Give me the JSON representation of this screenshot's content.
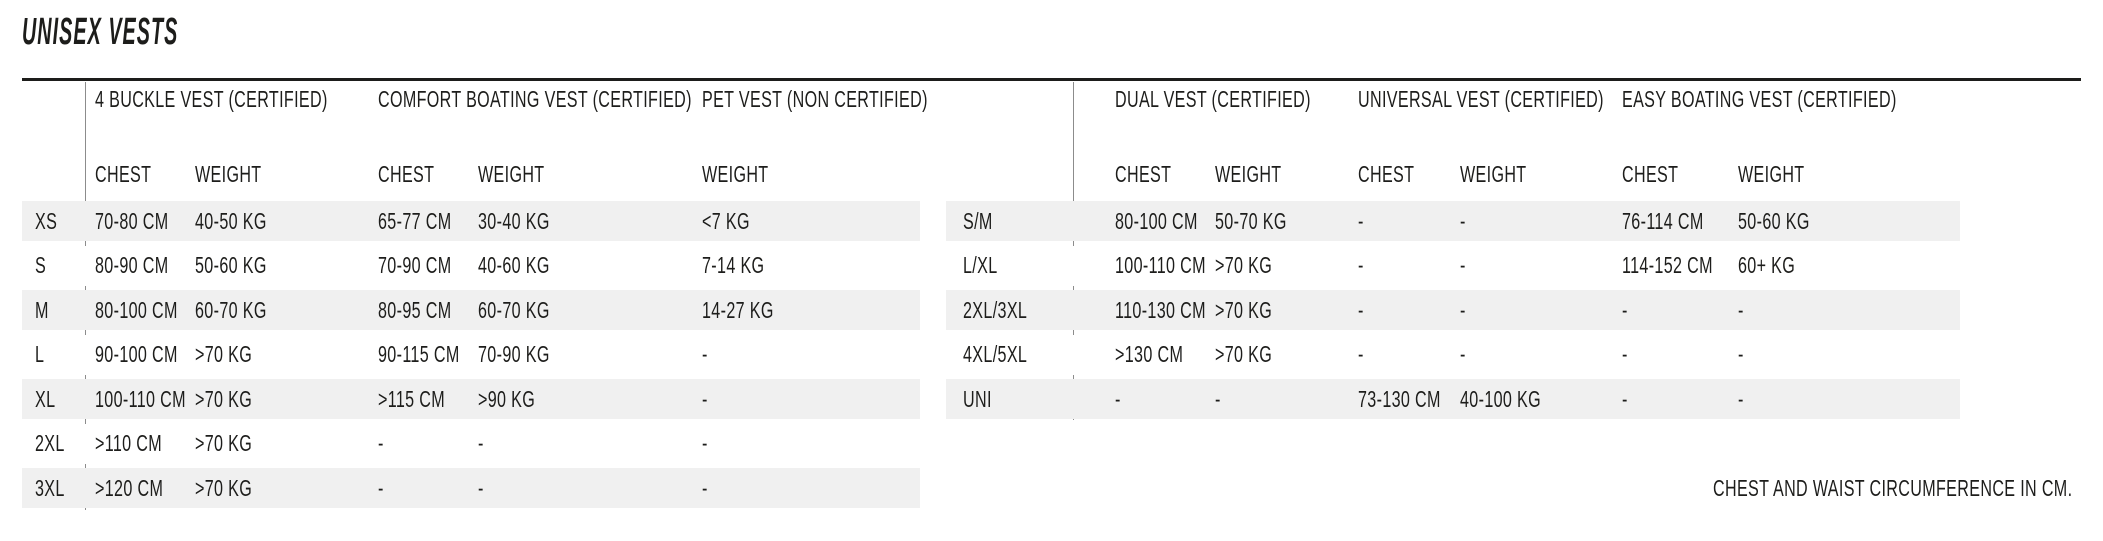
{
  "title": "UNISEX VESTS",
  "footnote": "CHEST AND WAIST CIRCUMFERENCE IN CM.",
  "colors": {
    "text": "#1d1d1b",
    "stripe": "#f0f0f0",
    "divider": "#8c8c8c",
    "rule": "#1d1d1b"
  },
  "left_table": {
    "groups": [
      {
        "label": "4 BUCKLE VEST (CERTIFIED)"
      },
      {
        "label": "COMFORT BOATING VEST (CERTIFIED)"
      },
      {
        "label": "PET VEST (NON CERTIFIED)"
      }
    ],
    "columns": [
      "CHEST",
      "WEIGHT",
      "CHEST",
      "WEIGHT",
      "WEIGHT"
    ],
    "rows": [
      {
        "size": "XS",
        "cells": [
          "70-80 CM",
          "40-50 KG",
          "65-77 CM",
          "30-40 KG",
          "<7 KG"
        ]
      },
      {
        "size": "S",
        "cells": [
          "80-90 CM",
          "50-60 KG",
          "70-90 CM",
          "40-60 KG",
          "7-14 KG"
        ]
      },
      {
        "size": "M",
        "cells": [
          "80-100 CM",
          "60-70 KG",
          "80-95 CM",
          "60-70 KG",
          "14-27 KG"
        ]
      },
      {
        "size": "L",
        "cells": [
          "90-100 CM",
          ">70 KG",
          "90-115 CM",
          "70-90 KG",
          "-"
        ]
      },
      {
        "size": "XL",
        "cells": [
          "100-110 CM",
          ">70 KG",
          ">115 CM",
          ">90 KG",
          "-"
        ]
      },
      {
        "size": "2XL",
        "cells": [
          ">110 CM",
          ">70 KG",
          "-",
          "-",
          "-"
        ]
      },
      {
        "size": "3XL",
        "cells": [
          ">120 CM",
          ">70 KG",
          "-",
          "-",
          "-"
        ]
      }
    ]
  },
  "right_table": {
    "groups": [
      {
        "label": "DUAL VEST (CERTIFIED)"
      },
      {
        "label": "UNIVERSAL VEST (CERTIFIED)"
      },
      {
        "label": "EASY BOATING VEST (CERTIFIED)"
      }
    ],
    "columns": [
      "CHEST",
      "WEIGHT",
      "CHEST",
      "WEIGHT",
      "CHEST",
      "WEIGHT"
    ],
    "rows": [
      {
        "size": "S/M",
        "cells": [
          "80-100 CM",
          "50-70 KG",
          "-",
          "-",
          "76-114 CM",
          "50-60 KG"
        ]
      },
      {
        "size": "L/XL",
        "cells": [
          "100-110 CM",
          ">70 KG",
          "-",
          "-",
          "114-152 CM",
          "60+ KG"
        ]
      },
      {
        "size": "2XL/3XL",
        "cells": [
          "110-130 CM",
          ">70 KG",
          "-",
          "-",
          "-",
          "-"
        ]
      },
      {
        "size": "4XL/5XL",
        "cells": [
          ">130 CM",
          ">70 KG",
          "-",
          "-",
          "-",
          "-"
        ]
      },
      {
        "size": "UNI",
        "cells": [
          "-",
          "-",
          "73-130 CM",
          "40-100 KG",
          "-",
          "-"
        ]
      }
    ]
  }
}
